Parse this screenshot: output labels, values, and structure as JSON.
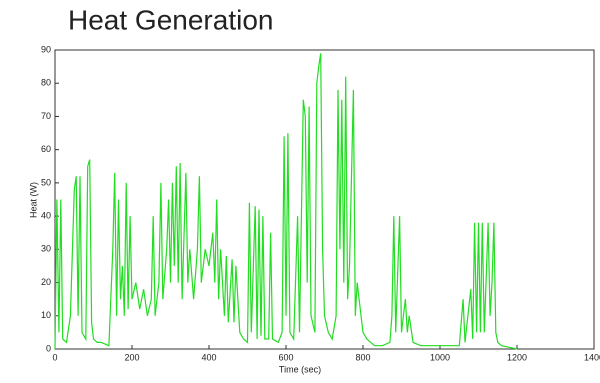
{
  "chart_data": {
    "type": "line",
    "title": "Heat Generation",
    "x_label": "Time (sec)",
    "y_label": "Heat (W)",
    "x": [
      0,
      5,
      10,
      15,
      20,
      30,
      40,
      50,
      55,
      60,
      65,
      70,
      80,
      85,
      90,
      95,
      100,
      110,
      120,
      140,
      150,
      155,
      160,
      165,
      170,
      175,
      180,
      185,
      190,
      195,
      200,
      210,
      220,
      230,
      240,
      250,
      255,
      260,
      270,
      275,
      280,
      290,
      295,
      300,
      305,
      310,
      315,
      320,
      325,
      330,
      340,
      345,
      350,
      360,
      370,
      375,
      380,
      390,
      400,
      410,
      415,
      420,
      425,
      430,
      440,
      445,
      450,
      460,
      465,
      470,
      480,
      490,
      500,
      505,
      510,
      520,
      525,
      530,
      535,
      540,
      545,
      555,
      560,
      565,
      580,
      590,
      595,
      600,
      605,
      610,
      620,
      630,
      635,
      645,
      650,
      655,
      660,
      665,
      675,
      680,
      685,
      690,
      695,
      700,
      710,
      720,
      730,
      735,
      740,
      745,
      750,
      755,
      760,
      765,
      775,
      780,
      785,
      790,
      800,
      810,
      820,
      830,
      850,
      870,
      875,
      880,
      885,
      895,
      900,
      905,
      910,
      915,
      920,
      930,
      950,
      1000,
      1050,
      1060,
      1065,
      1080,
      1085,
      1090,
      1095,
      1100,
      1105,
      1110,
      1115,
      1125,
      1130,
      1135,
      1140,
      1145,
      1150,
      1160,
      1200
    ],
    "series": [
      {
        "color": "#22dd22",
        "values": [
          0,
          45,
          5,
          45,
          3,
          2,
          10,
          48,
          52,
          10,
          52,
          5,
          3,
          55,
          57,
          8,
          3,
          2,
          2,
          1,
          30,
          53,
          10,
          45,
          15,
          25,
          10,
          50,
          12,
          40,
          15,
          20,
          12,
          18,
          10,
          15,
          40,
          10,
          20,
          50,
          15,
          30,
          45,
          20,
          50,
          25,
          55,
          20,
          56,
          15,
          53,
          20,
          30,
          15,
          30,
          52,
          20,
          30,
          25,
          35,
          20,
          45,
          15,
          30,
          10,
          28,
          8,
          27,
          8,
          25,
          5,
          3,
          2,
          44,
          5,
          43,
          3,
          42,
          4,
          40,
          3,
          3,
          35,
          3,
          2,
          5,
          64,
          10,
          65,
          5,
          3,
          40,
          5,
          75,
          70,
          20,
          73,
          10,
          5,
          80,
          85,
          89,
          30,
          10,
          5,
          3,
          10,
          78,
          30,
          75,
          20,
          82,
          15,
          25,
          78,
          10,
          20,
          15,
          5,
          3,
          2,
          1,
          1,
          2,
          10,
          40,
          5,
          40,
          5,
          10,
          15,
          5,
          10,
          2,
          1,
          1,
          1,
          15,
          2,
          18,
          3,
          38,
          5,
          38,
          5,
          38,
          5,
          38,
          10,
          20,
          38,
          5,
          2,
          1,
          0
        ]
      }
    ],
    "xlim": [
      0,
      1400
    ],
    "ylim": [
      0,
      90
    ],
    "xticks": [
      0,
      200,
      400,
      600,
      800,
      1000,
      1200,
      1400
    ],
    "yticks": [
      0,
      10,
      20,
      30,
      40,
      50,
      60,
      70,
      80,
      90
    ]
  }
}
